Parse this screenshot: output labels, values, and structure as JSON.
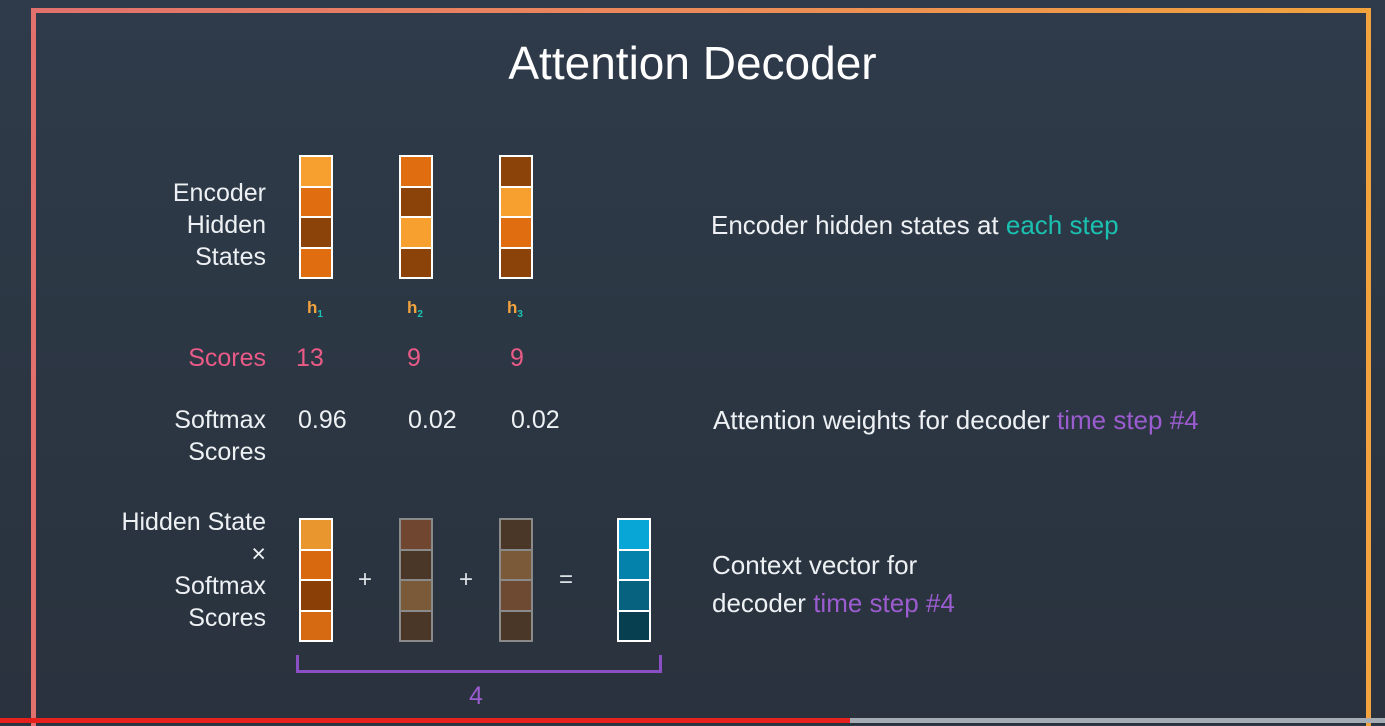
{
  "title": "Attention Decoder",
  "labels": {
    "encoder": [
      "Encoder",
      "Hidden",
      "States"
    ],
    "scores": "Scores",
    "softmax": [
      "Softmax",
      "Scores"
    ],
    "product": [
      "Hidden State",
      "×",
      "Softmax",
      "Scores"
    ]
  },
  "hidden_states": [
    {
      "name": "h",
      "sub": "1",
      "colors": [
        "#f7a02f",
        "#e06d10",
        "#8c430a",
        "#e06d10"
      ]
    },
    {
      "name": "h",
      "sub": "2",
      "colors": [
        "#e06d10",
        "#8c430a",
        "#f7a02f",
        "#8c430a"
      ]
    },
    {
      "name": "h",
      "sub": "3",
      "colors": [
        "#8c430a",
        "#f7a02f",
        "#e06d10",
        "#8c430a"
      ]
    }
  ],
  "scores": [
    "13",
    "9",
    "9"
  ],
  "softmax_scores": [
    "0.96",
    "0.02",
    "0.02"
  ],
  "weighted_vectors": [
    [
      "#ea962f",
      "#d8690f",
      "#8a3f06",
      "#d66a12"
    ],
    [
      "#704630",
      "#4b3728",
      "#7a5a38",
      "#4b3728"
    ],
    [
      "#4b3728",
      "#7a5a38",
      "#6e4a33",
      "#4b3728"
    ]
  ],
  "operators": [
    "+",
    "+",
    "="
  ],
  "context_vector": [
    "#08a6d6",
    "#0582ab",
    "#06627f",
    "#073f50"
  ],
  "sum_count": "4",
  "notes": {
    "encoder": {
      "text": "Encoder hidden states at ",
      "highlight": "each step"
    },
    "attention": {
      "text": "Attention weights for decoder ",
      "highlight": "time step #4"
    },
    "context_line1": "Context vector for",
    "context_line2": {
      "text": "decoder ",
      "highlight": "time step #4"
    }
  },
  "colors": {
    "teal": "#1ac1b0",
    "purple": "#9b5ccf",
    "pink": "#ea5a86",
    "orange": "#f2a33e"
  },
  "video_progress": 0.614
}
